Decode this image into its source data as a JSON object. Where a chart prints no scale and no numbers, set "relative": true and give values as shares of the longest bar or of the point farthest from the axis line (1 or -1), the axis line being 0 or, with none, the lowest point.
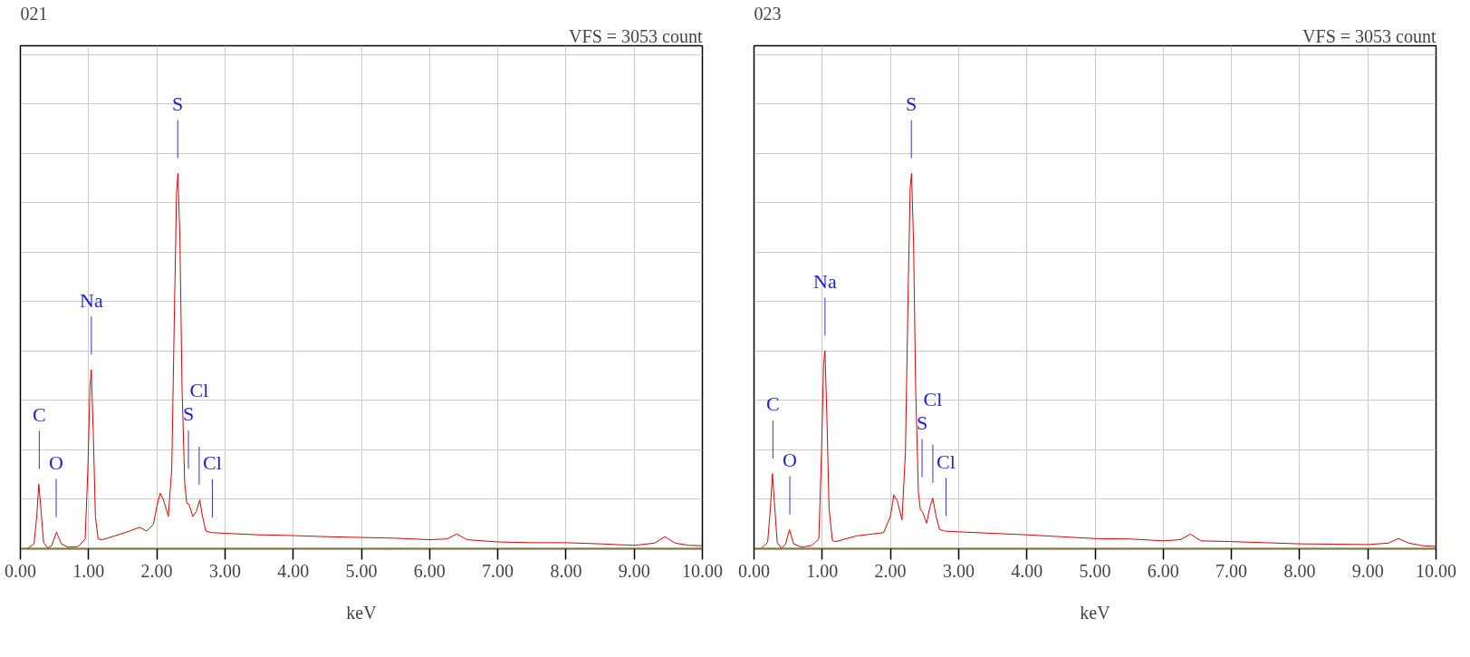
{
  "chart_data": [
    {
      "type": "line",
      "title": "021",
      "subtitle": "VFS = 3053 count",
      "xlabel": "keV",
      "relative": true,
      "x": [
        0.1,
        0.2,
        0.24,
        0.27,
        0.3,
        0.34,
        0.4,
        0.46,
        0.53,
        0.6,
        0.7,
        0.85,
        0.95,
        0.99,
        1.02,
        1.04,
        1.07,
        1.1,
        1.14,
        1.2,
        1.4,
        1.6,
        1.75,
        1.85,
        1.95,
        2.0,
        2.05,
        2.1,
        2.17,
        2.22,
        2.26,
        2.29,
        2.31,
        2.34,
        2.37,
        2.41,
        2.44,
        2.47,
        2.53,
        2.58,
        2.63,
        2.67,
        2.72,
        2.8,
        3.0,
        3.5,
        4.0,
        4.5,
        5.0,
        5.5,
        6.0,
        6.25,
        6.4,
        6.55,
        7.0,
        7.5,
        8.0,
        8.5,
        9.0,
        9.3,
        9.45,
        9.6,
        9.8,
        10.0
      ],
      "series": [
        {
          "color": "#e00000",
          "values": [
            0,
            0.013,
            0.086,
            0.172,
            0.108,
            0.017,
            0.002,
            0.009,
            0.044,
            0.013,
            0.004,
            0.006,
            0.026,
            0.216,
            0.431,
            0.477,
            0.302,
            0.086,
            0.026,
            0.024,
            0.035,
            0.047,
            0.057,
            0.047,
            0.065,
            0.112,
            0.148,
            0.129,
            0.086,
            0.216,
            0.647,
            0.949,
            1,
            0.82,
            0.431,
            0.173,
            0.121,
            0.119,
            0.086,
            0.099,
            0.13,
            0.086,
            0.047,
            0.043,
            0.041,
            0.037,
            0.035,
            0.032,
            0.03,
            0.028,
            0.024,
            0.026,
            0.039,
            0.024,
            0.018,
            0.016,
            0.016,
            0.013,
            0.009,
            0.015,
            0.032,
            0.015,
            0.009,
            0.008
          ]
        }
      ],
      "xlim": [
        0,
        10
      ],
      "xticks": [
        {
          "value": 0,
          "label": "0.00"
        },
        {
          "value": 1,
          "label": "1.00"
        },
        {
          "value": 2,
          "label": "2.00"
        },
        {
          "value": 3,
          "label": "3.00"
        },
        {
          "value": 4,
          "label": "4.00"
        },
        {
          "value": 5,
          "label": "5.00"
        },
        {
          "value": 6,
          "label": "6.00"
        },
        {
          "value": 7,
          "label": "7.00"
        },
        {
          "value": 8,
          "label": "8.00"
        },
        {
          "value": 9,
          "label": "9.00"
        },
        {
          "value": 10,
          "label": "10.00"
        }
      ],
      "tick_labels": "x",
      "grid": true,
      "ref_lines": [
        {
          "axis": "x",
          "value": 0.277,
          "label": "C"
        },
        {
          "axis": "x",
          "value": 0.525,
          "label": "O"
        },
        {
          "axis": "x",
          "value": 1.041,
          "label": "Na"
        },
        {
          "axis": "x",
          "value": 2.307,
          "label": "S"
        },
        {
          "axis": "x",
          "value": 2.464,
          "label": "S"
        },
        {
          "axis": "x",
          "value": 2.622,
          "label": "Cl"
        },
        {
          "axis": "x",
          "value": 2.815,
          "label": "Cl"
        }
      ]
    },
    {
      "type": "line",
      "title": "023",
      "subtitle": "VFS = 3053 count",
      "xlabel": "keV",
      "relative": true,
      "x": [
        0.1,
        0.2,
        0.24,
        0.27,
        0.3,
        0.34,
        0.4,
        0.46,
        0.52,
        0.58,
        0.7,
        0.85,
        0.95,
        0.99,
        1.02,
        1.04,
        1.07,
        1.1,
        1.15,
        1.2,
        1.5,
        1.9,
        2.0,
        2.05,
        2.1,
        2.17,
        2.22,
        2.26,
        2.29,
        2.31,
        2.34,
        2.37,
        2.41,
        2.44,
        2.47,
        2.53,
        2.58,
        2.62,
        2.67,
        2.72,
        2.8,
        3.0,
        3.5,
        4.0,
        4.5,
        5.0,
        5.5,
        6.0,
        6.25,
        6.4,
        6.55,
        7.0,
        7.5,
        8.0,
        8.5,
        9.0,
        9.3,
        9.45,
        9.6,
        9.8,
        10.0
      ],
      "series": [
        {
          "color": "#e00000",
          "values": [
            0,
            0.017,
            0.107,
            0.2,
            0.12,
            0.017,
            0.002,
            0.011,
            0.051,
            0.013,
            0.004,
            0.009,
            0.026,
            0.257,
            0.492,
            0.527,
            0.342,
            0.107,
            0.021,
            0.019,
            0.034,
            0.043,
            0.086,
            0.143,
            0.128,
            0.077,
            0.257,
            0.684,
            0.962,
            1,
            0.812,
            0.428,
            0.15,
            0.103,
            0.099,
            0.068,
            0.111,
            0.135,
            0.086,
            0.051,
            0.047,
            0.045,
            0.041,
            0.037,
            0.032,
            0.027,
            0.026,
            0.021,
            0.024,
            0.039,
            0.021,
            0.019,
            0.016,
            0.013,
            0.012,
            0.011,
            0.015,
            0.027,
            0.015,
            0.008,
            0.006
          ]
        }
      ],
      "xlim": [
        0,
        10
      ],
      "xticks": [
        {
          "value": 0,
          "label": "0.00"
        },
        {
          "value": 1,
          "label": "1.00"
        },
        {
          "value": 2,
          "label": "2.00"
        },
        {
          "value": 3,
          "label": "3.00"
        },
        {
          "value": 4,
          "label": "4.00"
        },
        {
          "value": 5,
          "label": "5.00"
        },
        {
          "value": 6,
          "label": "6.00"
        },
        {
          "value": 7,
          "label": "7.00"
        },
        {
          "value": 8,
          "label": "8.00"
        },
        {
          "value": 9,
          "label": "9.00"
        },
        {
          "value": 10,
          "label": "10.00"
        }
      ],
      "tick_labels": "x",
      "grid": true,
      "ref_lines": [
        {
          "axis": "x",
          "value": 0.277,
          "label": "C"
        },
        {
          "axis": "x",
          "value": 0.525,
          "label": "O"
        },
        {
          "axis": "x",
          "value": 1.041,
          "label": "Na"
        },
        {
          "axis": "x",
          "value": 2.307,
          "label": "S"
        },
        {
          "axis": "x",
          "value": 2.464,
          "label": "S"
        },
        {
          "axis": "x",
          "value": 2.622,
          "label": "Cl"
        },
        {
          "axis": "x",
          "value": 2.815,
          "label": "Cl"
        }
      ]
    }
  ]
}
